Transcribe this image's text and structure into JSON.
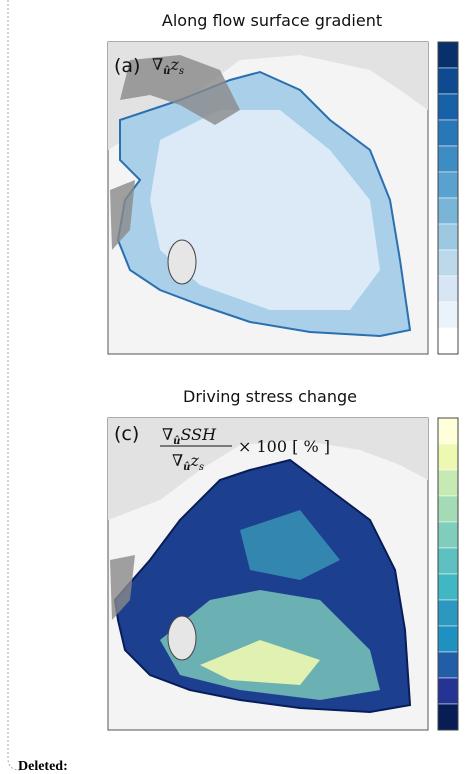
{
  "panels": [
    {
      "title": "Along flow surface gradient",
      "label": "(a)",
      "math": {
        "operator": "∇",
        "operator_sub": "û",
        "variable": "z",
        "variable_sub": "s"
      }
    },
    {
      "title": "Driving stress change",
      "label": "(c)",
      "math": {
        "numerator": {
          "operator": "∇",
          "operator_sub": "û",
          "variable": "SSH"
        },
        "denominator": {
          "operator": "∇",
          "operator_sub": "û",
          "variable": "z",
          "variable_sub": "s"
        },
        "suffix": "× 100 [ % ]"
      }
    }
  ],
  "balloon": {
    "label": "Deleted:"
  }
}
